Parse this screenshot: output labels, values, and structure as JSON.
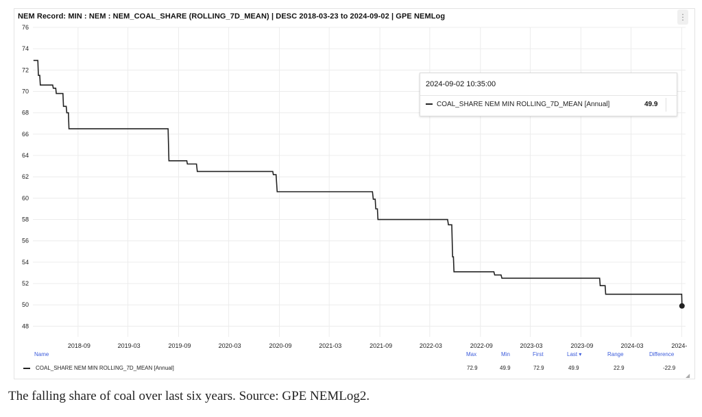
{
  "title": "NEM Record: MIN : NEM : NEM_COAL_SHARE (ROLLING_7D_MEAN) | DESC 2018-03-23 to 2024-09-02 | GPE NEMLog",
  "menu_icon": "vertical-dots-icon",
  "tooltip": {
    "time": "2024-09-02 10:35:00",
    "series": "COAL_SHARE NEM MIN ROLLING_7D_MEAN [Annual]",
    "value": "49.9"
  },
  "stats": {
    "headers": {
      "name": "Name",
      "max": "Max",
      "min": "Min",
      "first": "First",
      "last": "Last ▾",
      "range": "Range",
      "difference": "Difference"
    },
    "row": {
      "name": "COAL_SHARE NEM MIN ROLLING_7D_MEAN [Annual]",
      "max": "72.9",
      "min": "49.9",
      "first": "72.9",
      "last": "49.9",
      "range": "22.9",
      "difference": "-22.9"
    }
  },
  "caption": "The falling share of coal over last six years. Source: GPE NEMLog2.",
  "chart_data": {
    "type": "line",
    "title": "NEM Record: MIN : NEM : NEM_COAL_SHARE (ROLLING_7D_MEAN) | DESC 2018-03-23 to 2024-09-02 | GPE NEMLog",
    "xlabel": "",
    "ylabel": "",
    "ylim": [
      47,
      76
    ],
    "xlim": [
      "2018-03-21",
      "2024-09-15"
    ],
    "y_ticks": [
      76,
      74,
      72,
      70,
      68,
      66,
      64,
      62,
      60,
      58,
      56,
      54,
      52,
      50,
      48
    ],
    "x_ticks": [
      "2018-09",
      "2019-03",
      "2019-09",
      "2020-03",
      "2020-09",
      "2021-03",
      "2021-09",
      "2022-03",
      "2022-09",
      "2023-03",
      "2023-09",
      "2024-03",
      "2024-"
    ],
    "x_tick_dates": [
      "2018-09-01",
      "2019-03-01",
      "2019-09-01",
      "2020-03-01",
      "2020-09-01",
      "2021-03-01",
      "2021-09-01",
      "2022-03-01",
      "2022-09-01",
      "2023-03-01",
      "2023-09-01",
      "2024-03-01",
      "2024-09-01"
    ],
    "grid": true,
    "line_color": "#222222",
    "series": [
      {
        "name": "COAL_SHARE NEM MIN ROLLING_7D_MEAN [Annual]",
        "points": [
          [
            "2018-03-23",
            72.9
          ],
          [
            "2018-04-08",
            72.9
          ],
          [
            "2018-04-10",
            71.5
          ],
          [
            "2018-04-15",
            71.5
          ],
          [
            "2018-04-17",
            70.6
          ],
          [
            "2018-06-01",
            70.6
          ],
          [
            "2018-06-03",
            70.3
          ],
          [
            "2018-06-12",
            70.3
          ],
          [
            "2018-06-14",
            69.8
          ],
          [
            "2018-07-08",
            69.8
          ],
          [
            "2018-07-10",
            68.6
          ],
          [
            "2018-07-20",
            68.6
          ],
          [
            "2018-07-22",
            68.0
          ],
          [
            "2018-07-28",
            68.0
          ],
          [
            "2018-07-30",
            66.5
          ],
          [
            "2019-07-25",
            66.5
          ],
          [
            "2019-07-28",
            63.5
          ],
          [
            "2019-10-01",
            63.5
          ],
          [
            "2019-10-03",
            63.2
          ],
          [
            "2019-11-05",
            63.2
          ],
          [
            "2019-11-08",
            62.5
          ],
          [
            "2020-08-08",
            62.5
          ],
          [
            "2020-08-10",
            62.2
          ],
          [
            "2020-08-20",
            62.2
          ],
          [
            "2020-08-24",
            60.6
          ],
          [
            "2021-08-05",
            60.6
          ],
          [
            "2021-08-08",
            59.9
          ],
          [
            "2021-08-15",
            59.9
          ],
          [
            "2021-08-17",
            59.0
          ],
          [
            "2021-08-23",
            59.0
          ],
          [
            "2021-08-25",
            58.0
          ],
          [
            "2022-05-05",
            58.0
          ],
          [
            "2022-05-08",
            57.5
          ],
          [
            "2022-05-20",
            57.5
          ],
          [
            "2022-05-23",
            54.5
          ],
          [
            "2022-05-26",
            54.5
          ],
          [
            "2022-05-28",
            53.1
          ],
          [
            "2022-10-20",
            53.1
          ],
          [
            "2022-10-23",
            52.8
          ],
          [
            "2022-11-15",
            52.8
          ],
          [
            "2022-11-18",
            52.5
          ],
          [
            "2023-11-08",
            52.5
          ],
          [
            "2023-11-10",
            51.8
          ],
          [
            "2023-11-28",
            51.8
          ],
          [
            "2023-11-30",
            51.0
          ],
          [
            "2024-09-01",
            51.0
          ],
          [
            "2024-09-02",
            49.9
          ]
        ]
      }
    ],
    "end_marker": [
      "2024-09-02",
      49.9
    ]
  }
}
